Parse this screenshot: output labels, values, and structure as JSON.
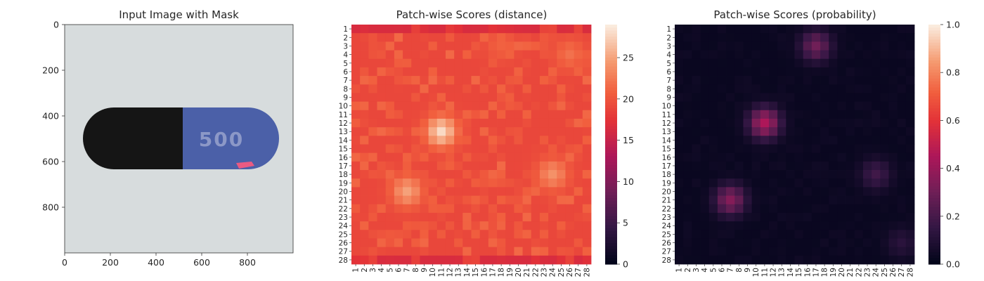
{
  "chart_data": [
    {
      "type": "image",
      "title": "Input Image with Mask",
      "x_ticks": [
        "0",
        "200",
        "400",
        "600",
        "800"
      ],
      "y_ticks": [
        "0",
        "200",
        "400",
        "600",
        "800"
      ],
      "xlim": [
        0,
        1000
      ],
      "ylim": [
        1000,
        0
      ],
      "image_content": {
        "background": "#d6dbdc",
        "capsule_dark_color": "#141414",
        "capsule_blue_color": "#4a5fa6",
        "capsule_label": "500",
        "mask_color": "#e8577e"
      }
    },
    {
      "type": "heatmap",
      "title": "Patch-wise Scores (distance)",
      "x_ticks": [
        "1",
        "2",
        "3",
        "4",
        "5",
        "6",
        "7",
        "8",
        "9",
        "10",
        "11",
        "12",
        "13",
        "14",
        "15",
        "16",
        "17",
        "18",
        "19",
        "20",
        "21",
        "22",
        "23",
        "24",
        "25",
        "26",
        "27",
        "28"
      ],
      "y_ticks": [
        "1",
        "2",
        "3",
        "4",
        "5",
        "6",
        "7",
        "8",
        "9",
        "10",
        "11",
        "12",
        "13",
        "14",
        "15",
        "16",
        "17",
        "18",
        "19",
        "20",
        "21",
        "22",
        "23",
        "24",
        "25",
        "26",
        "27",
        "28"
      ],
      "colormap": "rocket",
      "colorbar": {
        "ticks": [
          "0",
          "5",
          "10",
          "15",
          "20",
          "25"
        ],
        "vmin": 0,
        "vmax": 29
      },
      "grid_size": 28,
      "base_value": 19,
      "hotspots": [
        {
          "row": 13,
          "col": 11,
          "value": 28
        },
        {
          "row": 20,
          "col": 7,
          "value": 25
        },
        {
          "row": 18,
          "col": 24,
          "value": 24
        },
        {
          "row": 4,
          "col": 26,
          "value": 22
        },
        {
          "row": 3,
          "col": 18,
          "value": 21
        }
      ]
    },
    {
      "type": "heatmap",
      "title": "Patch-wise Scores (probability)",
      "x_ticks": [
        "1",
        "2",
        "3",
        "4",
        "5",
        "6",
        "7",
        "8",
        "9",
        "10",
        "11",
        "12",
        "13",
        "14",
        "15",
        "16",
        "17",
        "18",
        "19",
        "20",
        "21",
        "22",
        "23",
        "24",
        "25",
        "26",
        "27",
        "28"
      ],
      "y_ticks": [
        "1",
        "2",
        "3",
        "4",
        "5",
        "6",
        "7",
        "8",
        "9",
        "10",
        "11",
        "12",
        "13",
        "14",
        "15",
        "16",
        "17",
        "18",
        "19",
        "20",
        "21",
        "22",
        "23",
        "24",
        "25",
        "26",
        "27",
        "28"
      ],
      "colormap": "rocket",
      "colorbar": {
        "ticks": [
          "0.0",
          "0.2",
          "0.4",
          "0.6",
          "0.8",
          "1.0"
        ],
        "vmin": 0,
        "vmax": 1
      },
      "grid_size": 28,
      "base_value": 0.02,
      "hotspots": [
        {
          "row": 12,
          "col": 11,
          "value": 0.45
        },
        {
          "row": 21,
          "col": 7,
          "value": 0.35
        },
        {
          "row": 3,
          "col": 17,
          "value": 0.3
        },
        {
          "row": 18,
          "col": 24,
          "value": 0.18
        },
        {
          "row": 26,
          "col": 27,
          "value": 0.12
        }
      ]
    }
  ]
}
